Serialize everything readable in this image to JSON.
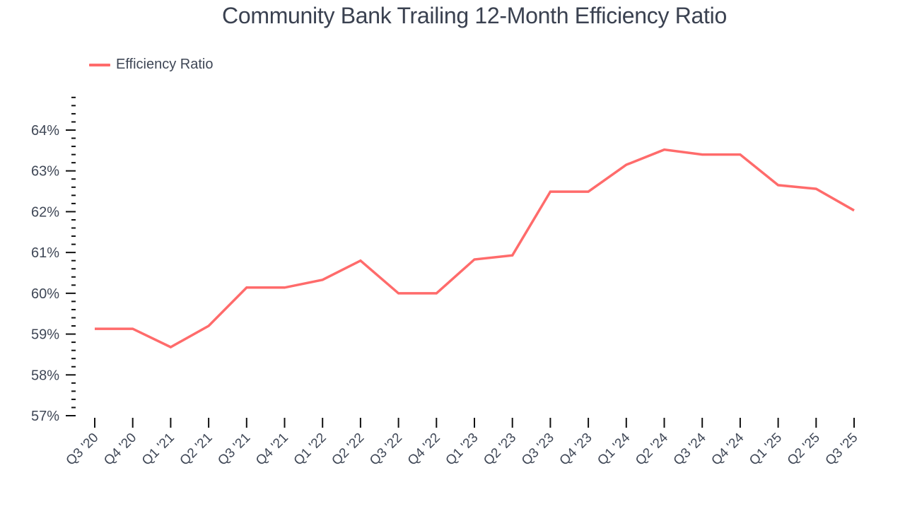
{
  "title": "Community Bank Trailing 12-Month Efficiency Ratio",
  "legend": {
    "label": "Efficiency Ratio",
    "color": "#ff6b6b"
  },
  "chart_data": {
    "type": "line",
    "title": "Community Bank Trailing 12-Month Efficiency Ratio",
    "xlabel": "",
    "ylabel": "",
    "categories": [
      "Q3 '20",
      "Q4 '20",
      "Q1 '21",
      "Q2 '21",
      "Q3 '21",
      "Q4 '21",
      "Q1 '22",
      "Q2 '22",
      "Q3 '22",
      "Q4 '22",
      "Q1 '23",
      "Q2 '23",
      "Q3 '23",
      "Q4 '23",
      "Q1 '24",
      "Q2 '24",
      "Q3 '24",
      "Q4 '24",
      "Q1 '25",
      "Q2 '25",
      "Q3 '25"
    ],
    "series": [
      {
        "name": "Efficiency Ratio",
        "color": "#ff6b6b",
        "values": [
          59.13,
          59.13,
          58.68,
          59.2,
          60.14,
          60.14,
          60.33,
          60.8,
          60.0,
          60.0,
          60.83,
          60.93,
          62.49,
          62.49,
          63.15,
          63.52,
          63.4,
          63.4,
          62.65,
          62.56,
          62.03
        ]
      }
    ],
    "ylim": [
      57,
      64.8
    ],
    "yticks": [
      57,
      58,
      59,
      60,
      61,
      62,
      63,
      64
    ],
    "ytick_labels": [
      "57%",
      "58%",
      "59%",
      "60%",
      "61%",
      "62%",
      "63%",
      "64%"
    ],
    "minor_tick_step": 0.2,
    "grid": false,
    "legend_position": "top-left"
  }
}
